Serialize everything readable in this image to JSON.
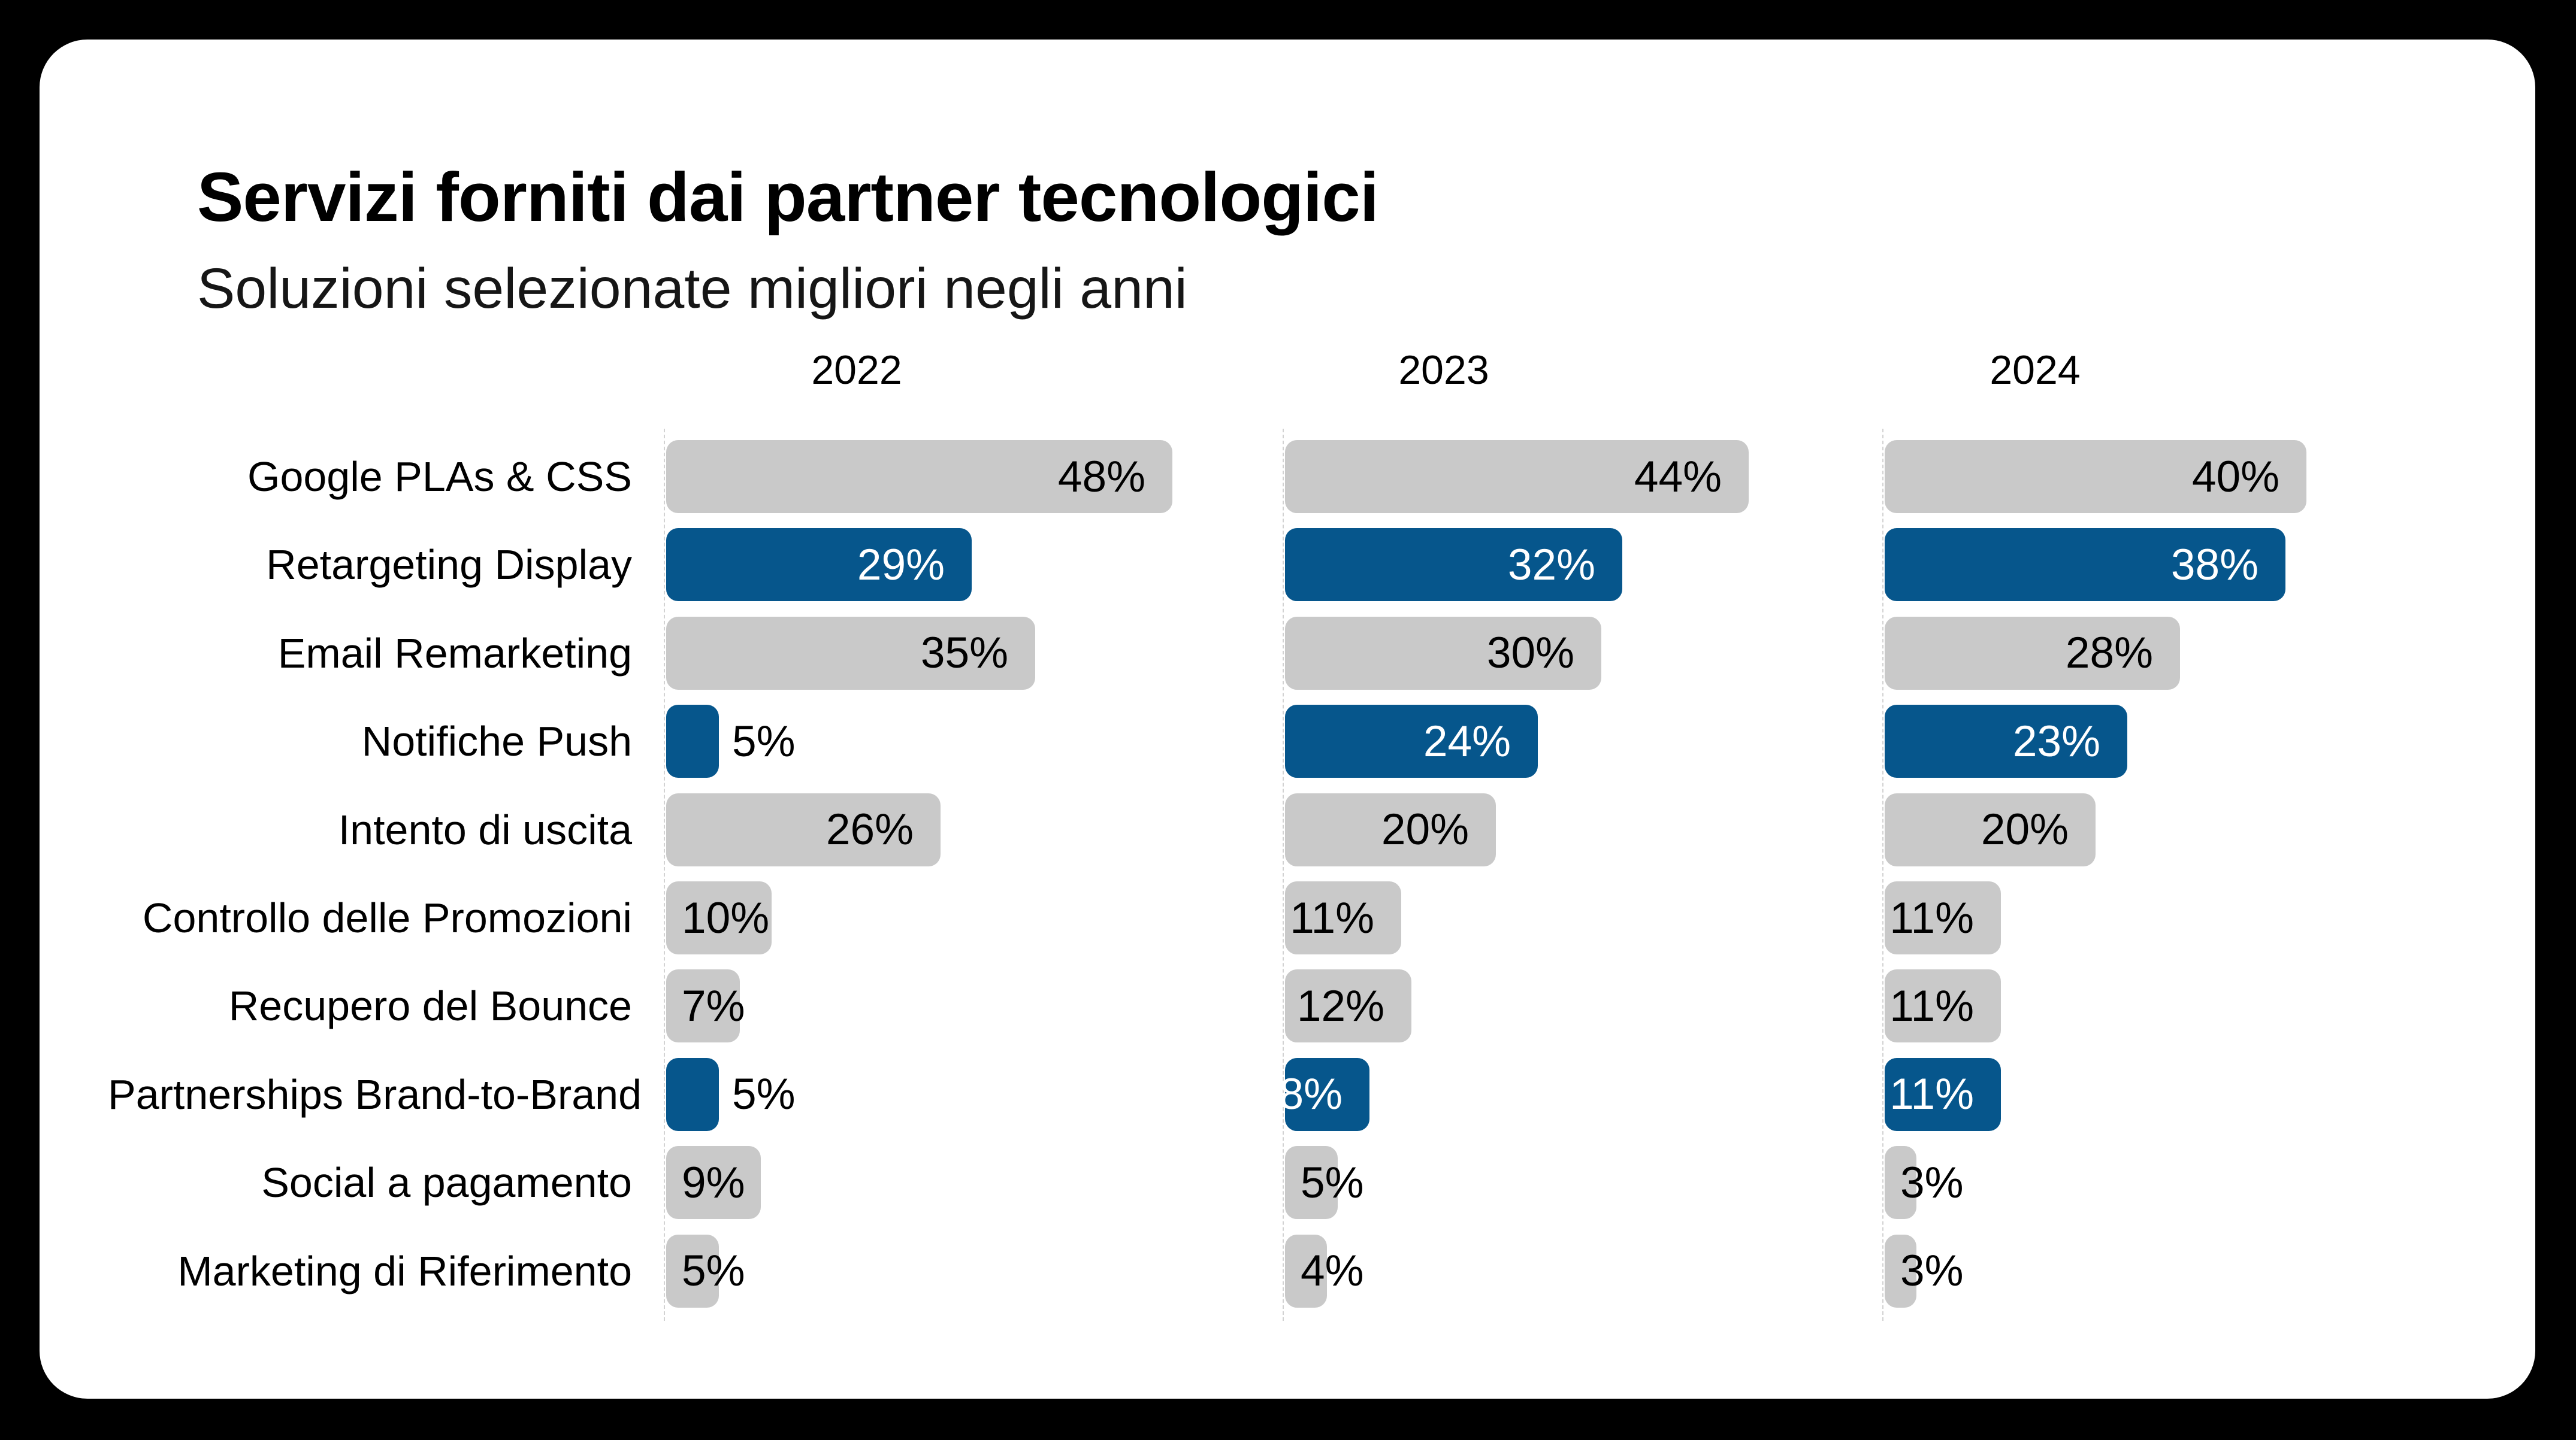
{
  "header": {
    "title": "Servizi forniti dai partner tecnologici",
    "subtitle": "Soluzioni selezionate migliori negli anni"
  },
  "colors": {
    "page_background": "#000000",
    "card_background": "#FFFFFF",
    "bar_gray": "#C9C9C9",
    "bar_blue": "#06568C",
    "value_text_dark": "#000000",
    "value_text_on_blue": "#FFFFFF",
    "axis_line": "#D2D2D2"
  },
  "chart_data": {
    "type": "bar",
    "orientation": "horizontal",
    "value_unit": "%",
    "title": "Servizi forniti dai partner tecnologici",
    "subtitle": "Soluzioni selezionate migliori negli anni",
    "grid": false,
    "legend": false,
    "xlim": [
      0,
      50
    ],
    "years": [
      "2022",
      "2023",
      "2024"
    ],
    "categories": [
      "Google PLAs & CSS",
      "Retargeting Display",
      "Email Remarketing",
      "Notifiche Push",
      "Intento di uscita",
      "Controllo delle Promozioni",
      "Recupero del Bounce",
      "Partnerships Brand-to-Brand",
      "Social a pagamento",
      "Marketing di Riferimento"
    ],
    "highlighted_categories": [
      "Retargeting Display",
      "Notifiche Push",
      "Partnerships Brand-to-Brand"
    ],
    "highlighted_row_indexes": [
      1,
      3,
      7
    ],
    "series": [
      {
        "name": "2022",
        "values": [
          48,
          29,
          35,
          5,
          26,
          10,
          7,
          5,
          9,
          5
        ],
        "labels": [
          "48%",
          "29%",
          "35%",
          "5%",
          "26%",
          "10%",
          "7%",
          "5%",
          "9%",
          "5%"
        ],
        "label_layout": [
          "in",
          "in",
          "in",
          "out",
          "in",
          "edge",
          "edge",
          "out",
          "edge",
          "edge"
        ]
      },
      {
        "name": "2023",
        "values": [
          44,
          32,
          30,
          24,
          20,
          11,
          12,
          8,
          5,
          4
        ],
        "labels": [
          "44%",
          "32%",
          "30%",
          "24%",
          "20%",
          "11%",
          "12%",
          "8%",
          "5%",
          "4%"
        ],
        "label_layout": [
          "in",
          "in",
          "in",
          "in",
          "in",
          "in",
          "in",
          "in",
          "edge",
          "edge"
        ]
      },
      {
        "name": "2024",
        "values": [
          40,
          38,
          28,
          23,
          20,
          11,
          11,
          11,
          3,
          3
        ],
        "labels": [
          "40%",
          "38%",
          "28%",
          "23%",
          "20%",
          "11%",
          "11%",
          "11%",
          "3%",
          "3%"
        ],
        "label_layout": [
          "in",
          "in",
          "in",
          "in",
          "in",
          "in",
          "in",
          "in",
          "edge",
          "edge"
        ]
      }
    ]
  }
}
